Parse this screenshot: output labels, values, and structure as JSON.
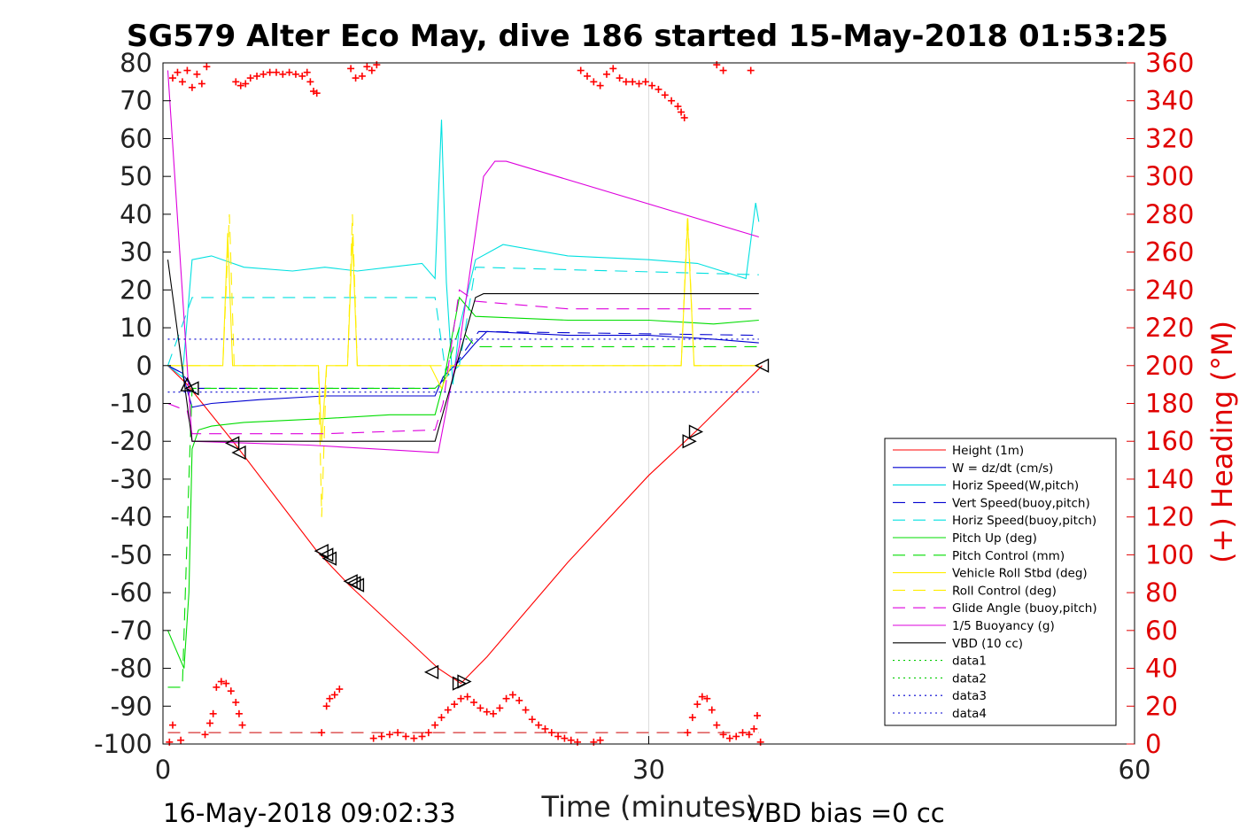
{
  "chart_data": {
    "type": "line",
    "title": "SG579 Alter Eco May, dive 186 started 15-May-2018 01:53:25",
    "xlabel": "Time (minutes)",
    "ylabel_right": "(+) Heading (°M)",
    "footer_left": "16-May-2018 09:02:33",
    "footer_right": "VBD bias =0 cc",
    "xlim": [
      0,
      60
    ],
    "ylim": [
      -100,
      80
    ],
    "ylim_right": [
      0,
      360
    ],
    "x_ticks": [
      "0",
      "30",
      "60"
    ],
    "y_ticks": [
      "80",
      "70",
      "60",
      "50",
      "40",
      "30",
      "20",
      "10",
      "0",
      "-10",
      "-20",
      "-30",
      "-40",
      "-50",
      "-60",
      "-70",
      "-80",
      "-90",
      "-100"
    ],
    "y_ticks_right": [
      "360",
      "340",
      "320",
      "300",
      "280",
      "260",
      "240",
      "220",
      "200",
      "180",
      "160",
      "140",
      "120",
      "100",
      "80",
      "60",
      "40",
      "20",
      "0"
    ],
    "grid": "x-only",
    "legend_position": "bottom-right",
    "series": [
      {
        "name": "Height (1m)",
        "color": "#ff0000",
        "style": "solid",
        "points": [
          [
            0.3,
            0
          ],
          [
            1.5,
            -5
          ],
          [
            4.5,
            -21
          ],
          [
            9.5,
            -49
          ],
          [
            11.5,
            -58
          ],
          [
            17,
            -80
          ],
          [
            18.4,
            -84
          ],
          [
            20,
            -77
          ],
          [
            25,
            -52
          ],
          [
            30,
            -29
          ],
          [
            33,
            -17
          ],
          [
            37,
            0
          ]
        ]
      },
      {
        "name": "W = dz/dt (cm/s)",
        "color": "#0000d0",
        "style": "solid",
        "points": [
          [
            0.3,
            0
          ],
          [
            1.2,
            -2
          ],
          [
            1.8,
            -11
          ],
          [
            3,
            -10
          ],
          [
            6,
            -9
          ],
          [
            10,
            -8
          ],
          [
            14,
            -8
          ],
          [
            16.8,
            -8
          ],
          [
            17.3,
            -3
          ],
          [
            18.5,
            2
          ],
          [
            19.3,
            6
          ],
          [
            20,
            9
          ],
          [
            25,
            8
          ],
          [
            30,
            8
          ],
          [
            34,
            7
          ],
          [
            36.8,
            6
          ]
        ]
      },
      {
        "name": "Horiz Speed(W,pitch)",
        "color": "#00e0e0",
        "style": "solid",
        "points": [
          [
            0.3,
            0
          ],
          [
            1.2,
            -3
          ],
          [
            1.8,
            28
          ],
          [
            3,
            29
          ],
          [
            5,
            26
          ],
          [
            8,
            25
          ],
          [
            10,
            26
          ],
          [
            12,
            25
          ],
          [
            14,
            26
          ],
          [
            16,
            27
          ],
          [
            16.8,
            23
          ],
          [
            17.2,
            65
          ],
          [
            17.5,
            22
          ],
          [
            17.9,
            -5
          ],
          [
            18.3,
            10
          ],
          [
            19.3,
            28
          ],
          [
            21,
            32
          ],
          [
            25,
            29
          ],
          [
            30,
            28
          ],
          [
            33,
            27
          ],
          [
            36,
            23
          ],
          [
            36.6,
            43
          ],
          [
            36.8,
            38
          ]
        ]
      },
      {
        "name": "Vert Speed(buoy,pitch)",
        "color": "#0000d0",
        "style": "dashed",
        "points": [
          [
            0.3,
            0
          ],
          [
            1.2,
            -2
          ],
          [
            1.8,
            -6
          ],
          [
            5,
            -6
          ],
          [
            10,
            -6
          ],
          [
            15,
            -6
          ],
          [
            16.8,
            -6
          ],
          [
            17.5,
            -3
          ],
          [
            19.5,
            9
          ],
          [
            36.8,
            8
          ]
        ]
      },
      {
        "name": "Horiz Speed(buoy,pitch)",
        "color": "#00e0e0",
        "style": "dashed",
        "points": [
          [
            0.3,
            0
          ],
          [
            1.8,
            18
          ],
          [
            10,
            18
          ],
          [
            16.8,
            18
          ],
          [
            17.5,
            -3
          ],
          [
            18.3,
            0
          ],
          [
            19.3,
            26
          ],
          [
            36.8,
            24
          ]
        ]
      },
      {
        "name": "Pitch Up (deg)",
        "color": "#00dd00",
        "style": "solid",
        "points": [
          [
            0.3,
            -70
          ],
          [
            0.8,
            -75
          ],
          [
            1.3,
            -80
          ],
          [
            1.6,
            -60
          ],
          [
            1.8,
            -22
          ],
          [
            2.2,
            -17
          ],
          [
            3,
            -16
          ],
          [
            5,
            -15
          ],
          [
            10,
            -14
          ],
          [
            14,
            -13
          ],
          [
            16.8,
            -13
          ],
          [
            17.3,
            -5
          ],
          [
            18.3,
            18
          ],
          [
            19.3,
            13
          ],
          [
            25,
            12
          ],
          [
            30,
            12
          ],
          [
            34,
            11
          ],
          [
            36.8,
            12
          ]
        ]
      },
      {
        "name": "Pitch Control (mm)",
        "color": "#00dd00",
        "style": "dashed",
        "points": [
          [
            0.3,
            -85
          ],
          [
            1.2,
            -85
          ],
          [
            1.6,
            -30
          ],
          [
            1.8,
            -6
          ],
          [
            10,
            -6
          ],
          [
            16.8,
            -6
          ],
          [
            17.3,
            -4
          ],
          [
            18.3,
            10
          ],
          [
            19.3,
            5
          ],
          [
            36.8,
            5
          ]
        ]
      },
      {
        "name": "Vehicle Roll Stbd (deg)",
        "color": "#ffee00",
        "style": "solid",
        "points": [
          [
            0.3,
            0
          ],
          [
            3.7,
            0
          ],
          [
            4,
            35
          ],
          [
            4.3,
            0
          ],
          [
            9.6,
            0
          ],
          [
            9.8,
            -20
          ],
          [
            10.1,
            0
          ],
          [
            11.4,
            0
          ],
          [
            11.7,
            34
          ],
          [
            12,
            0
          ],
          [
            16.5,
            0
          ],
          [
            17.2,
            -6
          ],
          [
            17.8,
            0
          ],
          [
            32,
            0
          ],
          [
            32.4,
            38
          ],
          [
            32.8,
            0
          ],
          [
            36.8,
            0
          ]
        ]
      },
      {
        "name": "Roll Control (deg)",
        "color": "#ffee00",
        "style": "dashed",
        "points": [
          [
            0.3,
            0
          ],
          [
            3.7,
            0
          ],
          [
            4.1,
            40
          ],
          [
            4.4,
            0
          ],
          [
            9.6,
            0
          ],
          [
            9.8,
            -40
          ],
          [
            10.1,
            0
          ],
          [
            11.4,
            0
          ],
          [
            11.7,
            40
          ],
          [
            12,
            0
          ],
          [
            32,
            0
          ],
          [
            32.4,
            40
          ],
          [
            32.8,
            0
          ],
          [
            36.8,
            0
          ]
        ]
      },
      {
        "name": "Glide Angle (buoy,pitch)",
        "color": "#dd00dd",
        "style": "dashed",
        "points": [
          [
            0.3,
            -10
          ],
          [
            1.5,
            -12
          ],
          [
            1.8,
            -18
          ],
          [
            5,
            -18
          ],
          [
            10,
            -18
          ],
          [
            16.8,
            -17
          ],
          [
            17.3,
            -10
          ],
          [
            18.3,
            20
          ],
          [
            19.3,
            17
          ],
          [
            25,
            15
          ],
          [
            30,
            15
          ],
          [
            36.8,
            15
          ]
        ]
      },
      {
        "name": "1/5 Buoyancy (g)",
        "color": "#dd00dd",
        "style": "solid",
        "points": [
          [
            0.3,
            78
          ],
          [
            1.8,
            -20
          ],
          [
            9,
            -21
          ],
          [
            17,
            -23
          ],
          [
            17.8,
            -5
          ],
          [
            18.3,
            5
          ],
          [
            19.8,
            50
          ],
          [
            20.5,
            54
          ],
          [
            21.2,
            54
          ],
          [
            36.8,
            34
          ]
        ]
      },
      {
        "name": "VBD (10 cc)",
        "color": "#000000",
        "style": "solid",
        "points": [
          [
            0.3,
            28
          ],
          [
            1.8,
            -20
          ],
          [
            10,
            -20
          ],
          [
            16.8,
            -20
          ],
          [
            19.3,
            18
          ],
          [
            19.8,
            19
          ],
          [
            36.8,
            19
          ]
        ]
      },
      {
        "name": "data1",
        "color": "#00cc00",
        "style": "dotted",
        "points": []
      },
      {
        "name": "data2",
        "color": "#00cc00",
        "style": "dotted",
        "points": []
      },
      {
        "name": "data3",
        "color": "#0000d0",
        "style": "dotted",
        "points": [
          [
            0.3,
            7
          ],
          [
            36.8,
            7
          ]
        ]
      },
      {
        "name": "data4",
        "color": "#0000d0",
        "style": "dotted",
        "points": [
          [
            0.3,
            -7
          ],
          [
            36.8,
            -7
          ]
        ]
      }
    ],
    "reference_line": {
      "color": "#cc0000",
      "style": "dashed",
      "y": -97,
      "x_range": [
        0.3,
        36.8
      ]
    },
    "heading_series": {
      "color": "#ff0000",
      "marker": "+",
      "axis": "right",
      "points": [
        [
          0.6,
          352
        ],
        [
          0.9,
          355
        ],
        [
          1.2,
          350
        ],
        [
          1.5,
          356
        ],
        [
          1.8,
          347
        ],
        [
          2.1,
          354
        ],
        [
          2.4,
          349
        ],
        [
          2.7,
          358
        ],
        [
          4.5,
          350
        ],
        [
          4.8,
          348
        ],
        [
          5.1,
          349
        ],
        [
          5.4,
          352
        ],
        [
          5.8,
          353
        ],
        [
          6.2,
          354
        ],
        [
          6.6,
          355
        ],
        [
          7,
          355
        ],
        [
          7.4,
          354
        ],
        [
          7.8,
          355
        ],
        [
          8.2,
          354
        ],
        [
          8.6,
          353
        ],
        [
          8.9,
          355
        ],
        [
          9.1,
          350
        ],
        [
          9.3,
          345
        ],
        [
          9.5,
          344
        ],
        [
          11.6,
          357
        ],
        [
          11.9,
          352
        ],
        [
          12.3,
          353
        ],
        [
          12.6,
          358
        ],
        [
          12.9,
          356
        ],
        [
          13.2,
          359
        ],
        [
          25.8,
          356
        ],
        [
          26.2,
          353
        ],
        [
          26.6,
          350
        ],
        [
          27,
          348
        ],
        [
          27.4,
          354
        ],
        [
          27.8,
          357
        ],
        [
          28.2,
          352
        ],
        [
          28.6,
          350
        ],
        [
          29,
          350
        ],
        [
          29.4,
          349
        ],
        [
          29.8,
          350
        ],
        [
          30.2,
          348
        ],
        [
          30.6,
          346
        ],
        [
          31,
          343
        ],
        [
          31.4,
          340
        ],
        [
          31.8,
          337
        ],
        [
          32,
          334
        ],
        [
          32.2,
          331
        ],
        [
          34.2,
          359
        ],
        [
          34.6,
          356
        ],
        [
          36.3,
          356
        ],
        [
          0.4,
          1
        ],
        [
          0.6,
          10
        ],
        [
          1.1,
          2
        ],
        [
          2.6,
          5
        ],
        [
          2.9,
          11
        ],
        [
          3.1,
          16
        ],
        [
          3.3,
          30
        ],
        [
          3.6,
          33
        ],
        [
          3.9,
          32
        ],
        [
          4.2,
          28
        ],
        [
          4.5,
          22
        ],
        [
          4.7,
          16
        ],
        [
          4.9,
          10
        ],
        [
          9.8,
          6
        ],
        [
          10.1,
          20
        ],
        [
          10.3,
          24
        ],
        [
          10.6,
          26
        ],
        [
          10.9,
          29
        ],
        [
          13,
          3
        ],
        [
          13.5,
          4
        ],
        [
          14,
          5
        ],
        [
          14.5,
          6
        ],
        [
          15,
          4
        ],
        [
          15.5,
          3
        ],
        [
          16,
          4
        ],
        [
          16.4,
          6
        ],
        [
          16.8,
          10
        ],
        [
          17.2,
          14
        ],
        [
          17.6,
          18
        ],
        [
          18,
          21
        ],
        [
          18.4,
          24
        ],
        [
          18.8,
          25
        ],
        [
          19.2,
          22
        ],
        [
          19.6,
          19
        ],
        [
          20,
          17
        ],
        [
          20.4,
          16
        ],
        [
          20.8,
          19
        ],
        [
          21.2,
          24
        ],
        [
          21.6,
          26
        ],
        [
          22,
          23
        ],
        [
          22.4,
          18
        ],
        [
          22.8,
          13
        ],
        [
          23.2,
          10
        ],
        [
          23.6,
          8
        ],
        [
          24,
          6
        ],
        [
          24.4,
          4
        ],
        [
          24.8,
          3
        ],
        [
          25.2,
          2
        ],
        [
          25.6,
          1
        ],
        [
          26.6,
          1
        ],
        [
          27,
          2
        ],
        [
          32.4,
          6
        ],
        [
          32.7,
          14
        ],
        [
          33,
          21
        ],
        [
          33.3,
          25
        ],
        [
          33.6,
          24
        ],
        [
          33.9,
          18
        ],
        [
          34.2,
          10
        ],
        [
          34.6,
          5
        ],
        [
          35,
          3
        ],
        [
          35.4,
          4
        ],
        [
          35.8,
          6
        ],
        [
          36.2,
          5
        ],
        [
          36.5,
          8
        ],
        [
          36.7,
          15
        ],
        [
          36.9,
          1
        ]
      ]
    },
    "markers": {
      "color": "#000000",
      "points": [
        [
          1.5,
          -5,
          "up"
        ],
        [
          1.8,
          -6,
          "left"
        ],
        [
          4.3,
          -20.5,
          "left"
        ],
        [
          4.7,
          -23,
          "left"
        ],
        [
          9.8,
          -49,
          "left"
        ],
        [
          10.1,
          -50,
          "left"
        ],
        [
          10.3,
          -51,
          "left"
        ],
        [
          11.6,
          -57,
          "left"
        ],
        [
          11.8,
          -57.5,
          "left"
        ],
        [
          12,
          -58,
          "left"
        ],
        [
          16.6,
          -81,
          "left"
        ],
        [
          18.3,
          -84,
          "right"
        ],
        [
          18.6,
          -83.5,
          "right"
        ],
        [
          32.5,
          -20,
          "right"
        ],
        [
          32.9,
          -17.5,
          "right"
        ],
        [
          37,
          0,
          "left"
        ]
      ]
    }
  }
}
